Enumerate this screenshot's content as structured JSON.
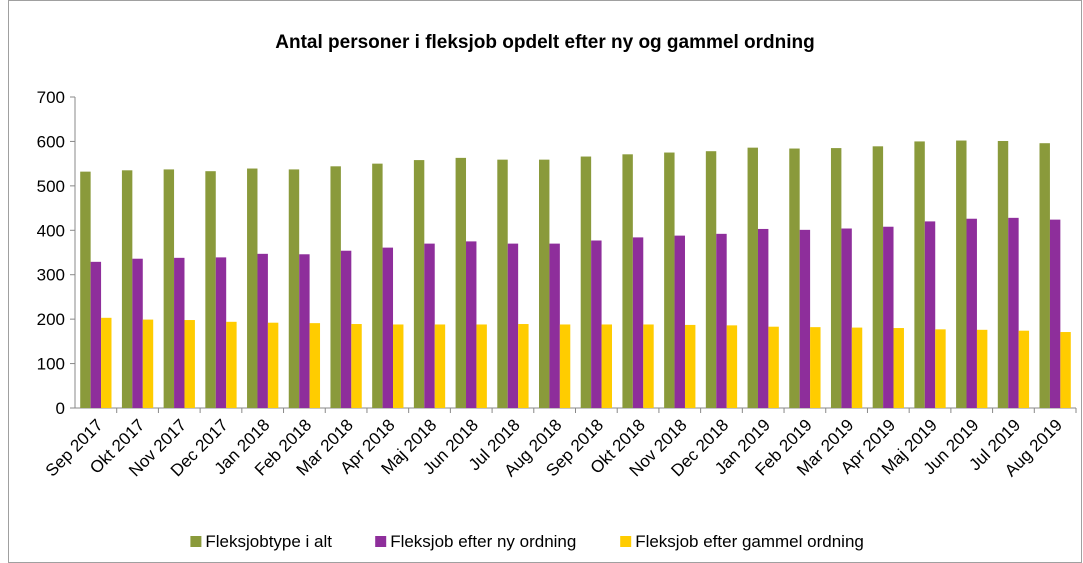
{
  "chart_data": {
    "type": "bar",
    "title": "Antal personer i fleksjob opdelt efter ny og gammel ordning",
    "categories": [
      "Sep 2017",
      "Okt 2017",
      "Nov 2017",
      "Dec 2017",
      "Jan 2018",
      "Feb 2018",
      "Mar 2018",
      "Apr 2018",
      "Maj 2018",
      "Jun 2018",
      "Jul 2018",
      "Aug 2018",
      "Sep 2018",
      "Okt 2018",
      "Nov 2018",
      "Dec 2018",
      "Jan 2019",
      "Feb 2019",
      "Mar 2019",
      "Apr 2019",
      "Maj 2019",
      "Jun 2019",
      "Jul 2019",
      "Aug 2019"
    ],
    "series": [
      {
        "name": "Fleksjobtype i alt",
        "color": "#8a9a3b",
        "values": [
          532,
          535,
          537,
          533,
          539,
          537,
          544,
          550,
          558,
          563,
          559,
          559,
          566,
          571,
          575,
          578,
          586,
          584,
          585,
          589,
          600,
          602,
          601,
          596
        ]
      },
      {
        "name": "Fleksjob efter ny ordning",
        "color": "#8e2e9b",
        "values": [
          329,
          336,
          338,
          339,
          347,
          346,
          354,
          361,
          370,
          375,
          370,
          370,
          377,
          384,
          388,
          392,
          403,
          401,
          404,
          408,
          420,
          426,
          428,
          424
        ]
      },
      {
        "name": "Fleksjob efter gammel ordning",
        "color": "#ffcc00",
        "values": [
          203,
          199,
          198,
          194,
          192,
          191,
          189,
          188,
          188,
          188,
          189,
          188,
          188,
          188,
          187,
          186,
          183,
          182,
          181,
          180,
          177,
          176,
          174,
          171
        ]
      }
    ],
    "ylim": [
      0,
      700
    ],
    "yticks": [
      0,
      100,
      200,
      300,
      400,
      500,
      600,
      700
    ],
    "legend": "bottom"
  }
}
